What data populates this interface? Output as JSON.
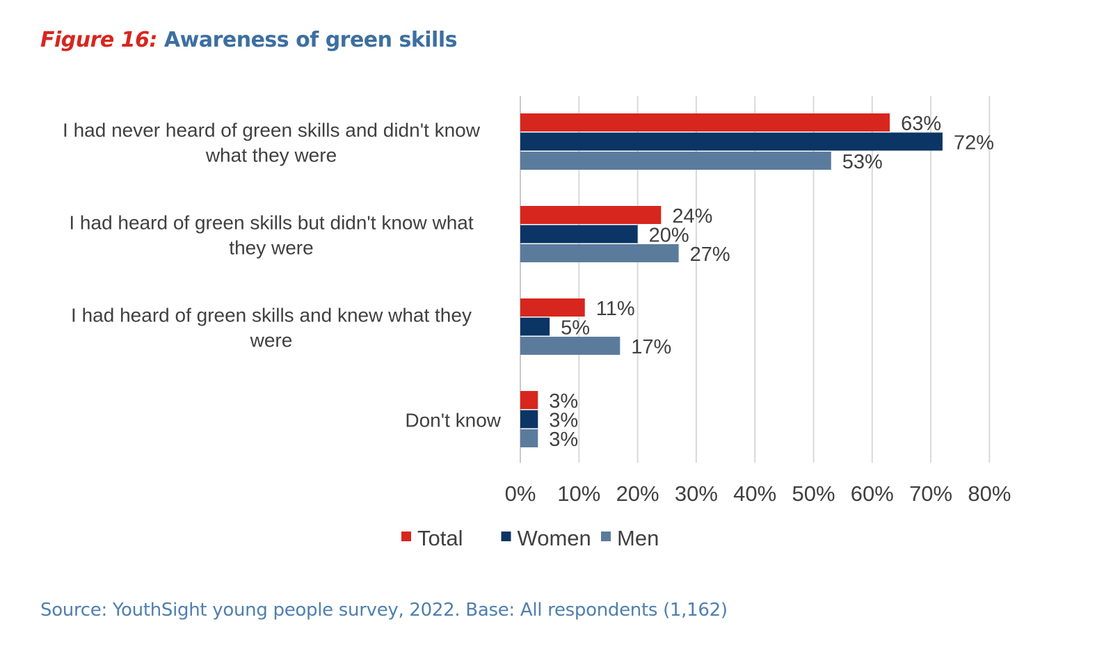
{
  "figure": {
    "number_label": "Figure 16:",
    "title": "Awareness of green skills",
    "source": "Source: YouthSight young people survey, 2022. Base: All respondents (1,162)"
  },
  "chart_data": {
    "type": "bar",
    "orientation": "horizontal",
    "title": "Awareness of green skills",
    "categories": [
      [
        "I had never heard of green skills and didn't know",
        "what they were"
      ],
      [
        "I had heard of green skills but didn't know what",
        "they were"
      ],
      [
        "I had heard of green skills and knew what they",
        "were"
      ],
      [
        "Don't know"
      ]
    ],
    "series": [
      {
        "name": "Total",
        "color": "#d7261e",
        "values": [
          63,
          24,
          11,
          3
        ]
      },
      {
        "name": "Women",
        "color": "#0b3564",
        "values": [
          72,
          20,
          5,
          3
        ]
      },
      {
        "name": "Men",
        "color": "#5b7b9d",
        "values": [
          53,
          27,
          17,
          3
        ]
      }
    ],
    "value_suffix": "%",
    "xlim": [
      0,
      80
    ],
    "xticks": [
      "0%",
      "10%",
      "20%",
      "30%",
      "40%",
      "50%",
      "60%",
      "70%",
      "80%"
    ],
    "grid": "vertical",
    "legend": "bottom",
    "xlabel": "",
    "ylabel": ""
  }
}
